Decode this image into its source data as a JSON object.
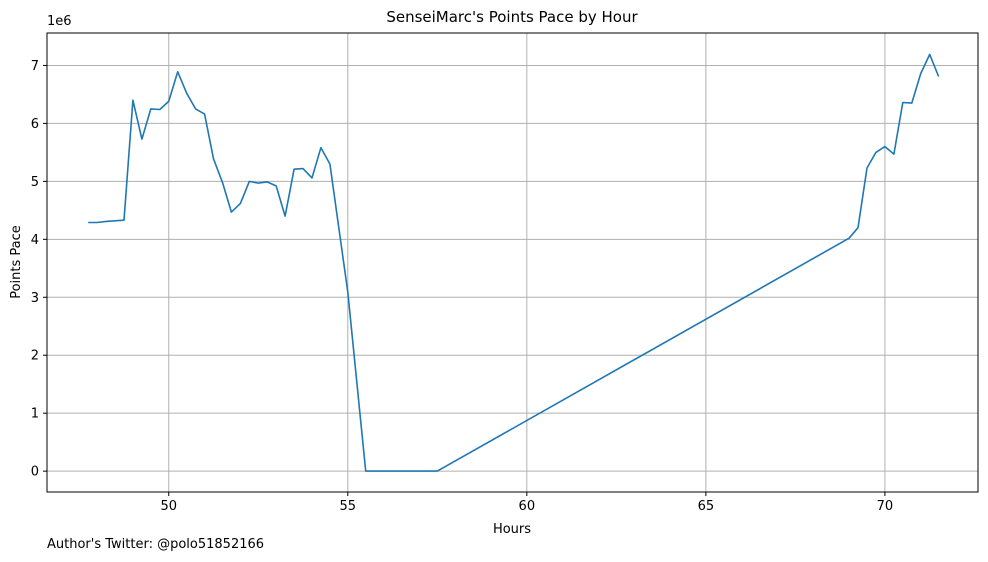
{
  "chart_data": {
    "type": "line",
    "title": "SenseiMarc's Points Pace by Hour",
    "xlabel": "Hours",
    "ylabel": "Points Pace",
    "y_multiplier_label": "1e6",
    "xlim": [
      46.6,
      72.6
    ],
    "ylim": [
      -0.36,
      7.56
    ],
    "xticks": [
      50,
      55,
      60,
      65,
      70
    ],
    "yticks": [
      0,
      1,
      2,
      3,
      4,
      5,
      6,
      7
    ],
    "grid": true,
    "line_color": "#1f77b4",
    "series": [
      {
        "x": [
          47.75,
          48.0,
          48.25,
          48.5,
          48.75,
          49.0,
          49.25,
          49.5,
          49.75,
          50.0,
          50.25,
          50.5,
          50.75,
          51.0,
          51.25,
          51.5,
          51.75,
          52.0,
          52.25,
          52.5,
          52.75,
          53.0,
          53.25,
          53.5,
          53.75,
          54.0,
          54.25,
          54.5,
          55.0,
          55.5,
          56.5,
          57.5,
          69.0,
          69.25,
          69.5,
          69.75,
          70.0,
          70.25,
          70.5,
          70.75,
          71.0,
          71.25,
          71.5
        ],
        "y": [
          4.29,
          4.29,
          4.31,
          4.32,
          4.33,
          6.4,
          5.73,
          6.25,
          6.24,
          6.38,
          6.89,
          6.52,
          6.25,
          6.16,
          5.39,
          4.98,
          4.47,
          4.62,
          5.0,
          4.97,
          4.99,
          4.92,
          4.4,
          5.21,
          5.22,
          5.06,
          5.58,
          5.3,
          3.09,
          0.0,
          0.0,
          0.0,
          4.02,
          4.2,
          5.23,
          5.5,
          5.6,
          5.47,
          6.36,
          6.35,
          6.86,
          7.19,
          6.81
        ]
      }
    ]
  },
  "footer": {
    "author_text": "Author's Twitter: @polo51852166"
  }
}
